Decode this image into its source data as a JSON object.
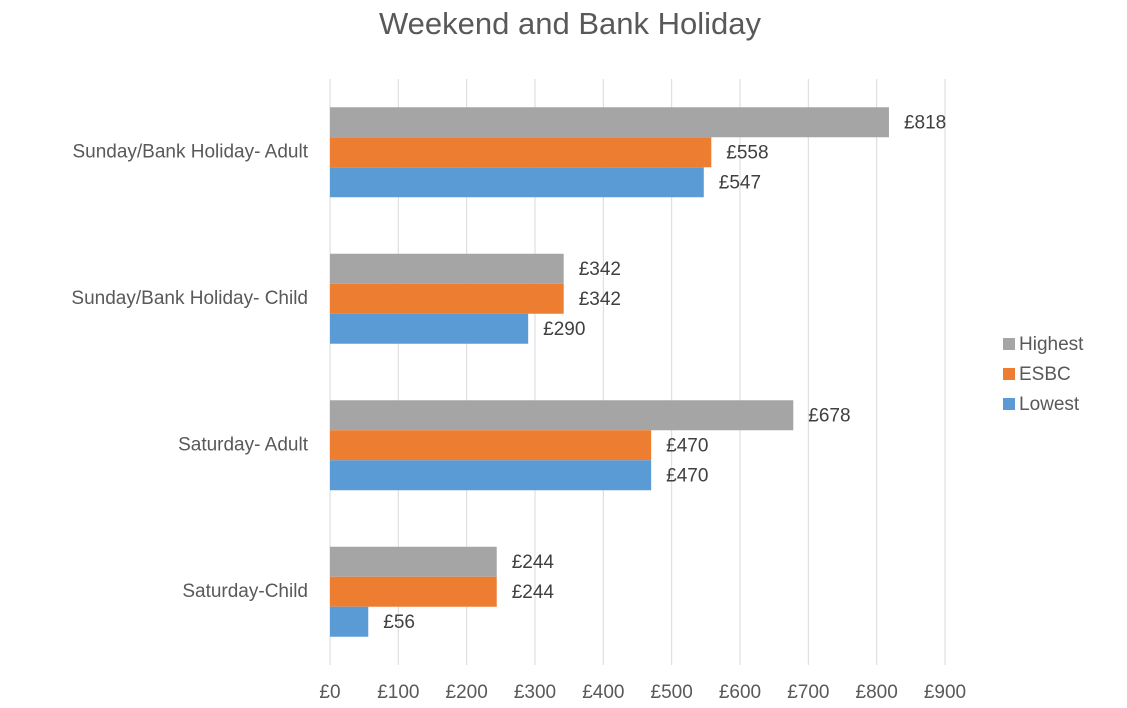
{
  "chart_data": {
    "type": "hbar",
    "title": "Weekend and Bank Holiday",
    "categories": [
      "Sunday/Bank Holiday- Adult",
      "Sunday/Bank Holiday- Child",
      "Saturday- Adult",
      "Saturday-Child"
    ],
    "series": [
      {
        "name": "Highest",
        "color": "#a5a5a5",
        "values": [
          818,
          342,
          678,
          244
        ],
        "value_labels": [
          "£818",
          "£342",
          "£678",
          "£244"
        ]
      },
      {
        "name": "ESBC",
        "color": "#ed7d31",
        "values": [
          558,
          342,
          470,
          244
        ],
        "value_labels": [
          "£558",
          "£342",
          "£470",
          "£244"
        ]
      },
      {
        "name": "Lowest",
        "color": "#5b9bd5",
        "values": [
          547,
          290,
          470,
          56
        ],
        "value_labels": [
          "£547",
          "£290",
          "£470",
          "£56"
        ]
      }
    ],
    "xlim": [
      0,
      900
    ],
    "xticks": [
      {
        "value": 0,
        "label": "£0"
      },
      {
        "value": 100,
        "label": "£100"
      },
      {
        "value": 200,
        "label": "£200"
      },
      {
        "value": 300,
        "label": "£300"
      },
      {
        "value": 400,
        "label": "£400"
      },
      {
        "value": 500,
        "label": "£500"
      },
      {
        "value": 600,
        "label": "£600"
      },
      {
        "value": 700,
        "label": "£700"
      },
      {
        "value": 800,
        "label": "£800"
      },
      {
        "value": 900,
        "label": "£900"
      }
    ],
    "grid": true,
    "legend": "right"
  }
}
